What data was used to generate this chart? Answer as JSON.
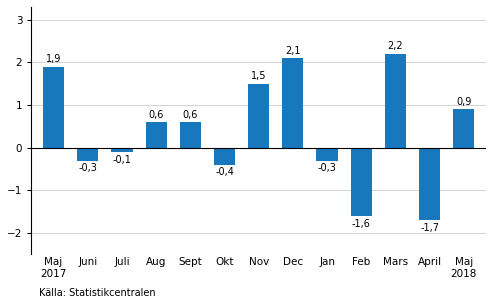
{
  "categories": [
    "Maj\n2017",
    "Juni",
    "Juli",
    "Aug",
    "Sept",
    "Okt",
    "Nov",
    "Dec",
    "Jan",
    "Feb",
    "Mars",
    "April",
    "Maj\n2018"
  ],
  "values": [
    1.9,
    -0.3,
    -0.1,
    0.6,
    0.6,
    -0.4,
    1.5,
    2.1,
    -0.3,
    -1.6,
    2.2,
    -1.7,
    0.9
  ],
  "bar_color": "#1878be",
  "ylim": [
    -2.5,
    3.3
  ],
  "yticks": [
    -2,
    -1,
    0,
    1,
    2,
    3
  ],
  "label_fontsize": 7.0,
  "tick_fontsize": 7.5,
  "source_text": "Källa: Statistikcentralen",
  "background_color": "#ffffff",
  "grid_color": "#cccccc",
  "bar_width": 0.62
}
